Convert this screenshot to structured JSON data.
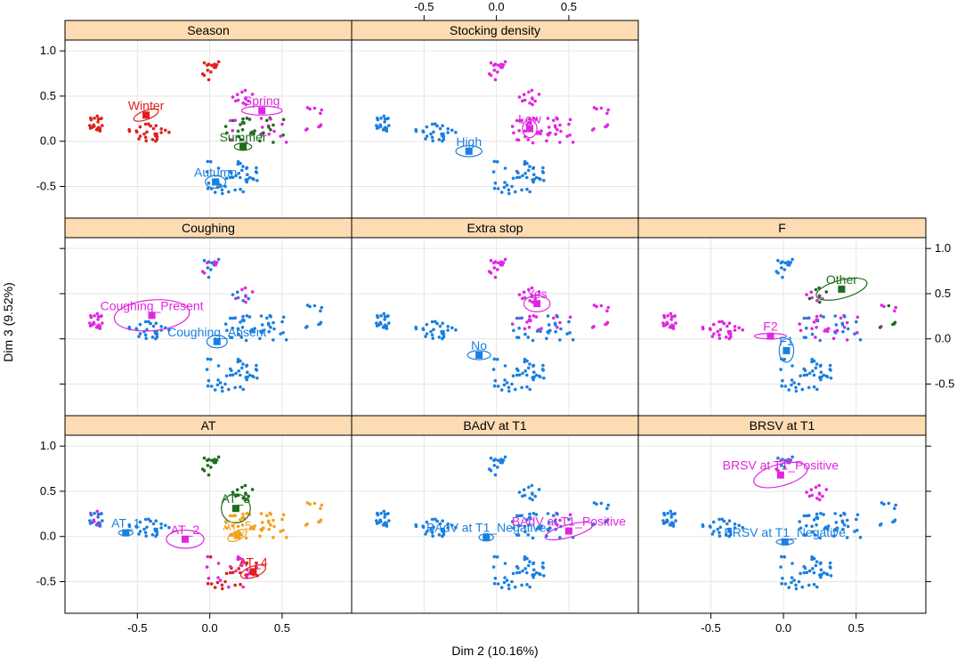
{
  "chart_data": {
    "type": "scatter",
    "x_label": "Dim 2 (10.16%)",
    "y_label": "Dim 3 (9.52%)",
    "xlim": [
      -1.0,
      0.98
    ],
    "ylim": [
      -0.85,
      1.12
    ],
    "x_ticks": [
      -0.5,
      0.0,
      0.5
    ],
    "x_tick_labels": [
      "-0.5",
      "0.0",
      "0.5"
    ],
    "y_ticks": [
      -0.5,
      0.0,
      0.5,
      1.0
    ],
    "y_tick_labels": [
      "-0.5",
      "0.0",
      "0.5",
      "1.0"
    ],
    "colors": {
      "strip_fill": "#FDDCB4",
      "grid": "#E6E6E6",
      "blue": "#1A7FE0",
      "magenta": "#E026E0",
      "red": "#E0201C",
      "green": "#1C6E1C",
      "orange": "#F2A01E"
    },
    "panels": [
      {
        "row": 0,
        "col": 0,
        "title": "Season",
        "categories": [
          {
            "label": "Winter",
            "color": "red",
            "cx": -0.44,
            "cy": 0.29,
            "rx": 0.09,
            "ry": 0.05,
            "angle": -20
          },
          {
            "label": "Spring",
            "color": "magenta",
            "cx": 0.36,
            "cy": 0.34,
            "rx": 0.14,
            "ry": 0.05,
            "angle": 0
          },
          {
            "label": "Summer",
            "color": "green",
            "cx": 0.23,
            "cy": -0.06,
            "rx": 0.06,
            "ry": 0.04,
            "angle": 0
          },
          {
            "label": "Autumn",
            "color": "blue",
            "cx": 0.04,
            "cy": -0.45,
            "rx": 0.07,
            "ry": 0.07,
            "angle": 0
          }
        ]
      },
      {
        "row": 0,
        "col": 1,
        "title": "Stocking density",
        "categories": [
          {
            "label": "Low",
            "color": "magenta",
            "cx": 0.23,
            "cy": 0.14,
            "rx": 0.05,
            "ry": 0.1,
            "angle": 0
          },
          {
            "label": "High",
            "color": "blue",
            "cx": -0.19,
            "cy": -0.11,
            "rx": 0.09,
            "ry": 0.06,
            "angle": 0
          }
        ]
      },
      {
        "row": 1,
        "col": 0,
        "title": "Coughing",
        "categories": [
          {
            "label": "Coughing_Present",
            "color": "magenta",
            "cx": -0.4,
            "cy": 0.26,
            "rx": 0.26,
            "ry": 0.17,
            "angle": -5
          },
          {
            "label": "Coughing_Absent",
            "color": "blue",
            "cx": 0.05,
            "cy": -0.03,
            "rx": 0.07,
            "ry": 0.07,
            "angle": 0
          }
        ]
      },
      {
        "row": 1,
        "col": 1,
        "title": "Extra stop",
        "categories": [
          {
            "label": "Yes",
            "color": "magenta",
            "cx": 0.28,
            "cy": 0.39,
            "rx": 0.09,
            "ry": 0.09,
            "angle": 0
          },
          {
            "label": "No",
            "color": "blue",
            "cx": -0.12,
            "cy": -0.18,
            "rx": 0.08,
            "ry": 0.05,
            "angle": 0
          }
        ]
      },
      {
        "row": 1,
        "col": 2,
        "title": "F",
        "categories": [
          {
            "label": "Other",
            "color": "green",
            "cx": 0.4,
            "cy": 0.55,
            "rx": 0.18,
            "ry": 0.1,
            "angle": -15
          },
          {
            "label": "F2",
            "color": "magenta",
            "cx": -0.09,
            "cy": 0.03,
            "rx": 0.11,
            "ry": 0.03,
            "angle": 0
          },
          {
            "label": "F1",
            "color": "blue",
            "cx": 0.02,
            "cy": -0.13,
            "rx": 0.05,
            "ry": 0.13,
            "angle": 0
          }
        ]
      },
      {
        "row": 2,
        "col": 0,
        "title": "AT",
        "categories": [
          {
            "label": "AT_1",
            "color": "blue",
            "cx": -0.58,
            "cy": 0.04,
            "rx": 0.05,
            "ry": 0.03,
            "angle": 0
          },
          {
            "label": "AT_2",
            "color": "magenta",
            "cx": -0.17,
            "cy": -0.03,
            "rx": 0.13,
            "ry": 0.1,
            "angle": 0
          },
          {
            "label": "AT_3",
            "color": "green",
            "cx": 0.18,
            "cy": 0.31,
            "rx": 0.1,
            "ry": 0.16,
            "angle": 0
          },
          {
            "label": "AT_5",
            "color": "orange",
            "cx": 0.19,
            "cy": 0.01,
            "rx": 0.07,
            "ry": 0.05,
            "angle": -25
          },
          {
            "label": "AT_4",
            "color": "red",
            "cx": 0.3,
            "cy": -0.39,
            "rx": 0.09,
            "ry": 0.06,
            "angle": -20
          }
        ]
      },
      {
        "row": 2,
        "col": 1,
        "title": "BAdV at T1",
        "categories": [
          {
            "label": "BAdV at T1_Positive",
            "color": "magenta",
            "cx": 0.5,
            "cy": 0.06,
            "rx": 0.17,
            "ry": 0.07,
            "angle": -15
          },
          {
            "label": "BAdV at T1_Negative",
            "color": "blue",
            "cx": -0.07,
            "cy": -0.01,
            "rx": 0.05,
            "ry": 0.04,
            "angle": 0
          }
        ]
      },
      {
        "row": 2,
        "col": 2,
        "title": "BRSV at T1",
        "categories": [
          {
            "label": "BRSV at T1_Positive",
            "color": "magenta",
            "cx": -0.02,
            "cy": 0.68,
            "rx": 0.19,
            "ry": 0.12,
            "angle": -15
          },
          {
            "label": "BRSV at T1_Negative",
            "color": "blue",
            "cx": 0.01,
            "cy": -0.06,
            "rx": 0.06,
            "ry": 0.03,
            "angle": 0
          }
        ]
      }
    ]
  }
}
